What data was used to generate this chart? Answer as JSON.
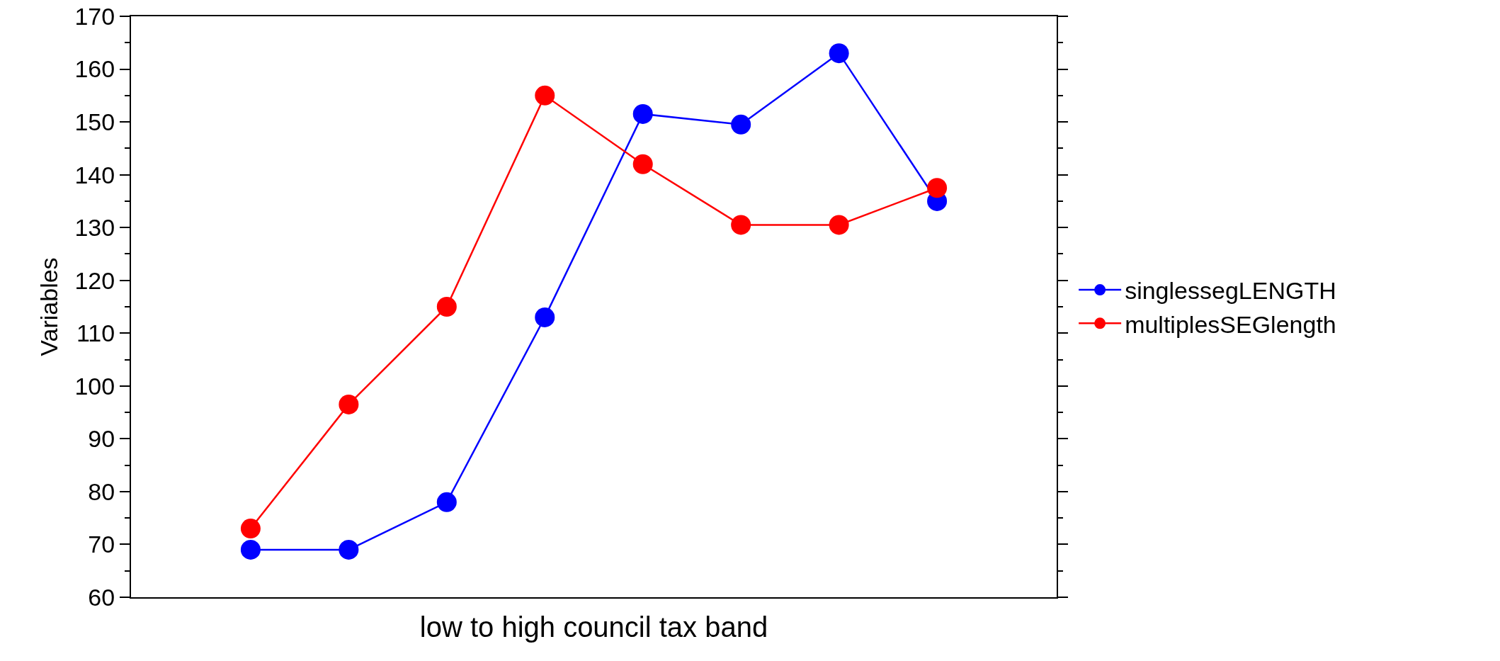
{
  "chart_data": {
    "type": "line",
    "xlabel": "low to high council tax band",
    "ylabel": "Variables",
    "categories": [
      null,
      null,
      null,
      null,
      null,
      null,
      null,
      null
    ],
    "series": [
      {
        "name": "singlessegLENGTH",
        "color": "#0000ff",
        "values": [
          69,
          69,
          78,
          113,
          151.5,
          149.5,
          163,
          135
        ]
      },
      {
        "name": "multiplesSEGlength",
        "color": "#ff0000",
        "values": [
          73,
          96.5,
          115,
          155,
          142,
          130.5,
          130.5,
          137.5
        ]
      }
    ],
    "ylim": [
      60,
      170
    ],
    "yticks": [
      60,
      {
        "value": 65,
        "label": null
      },
      70,
      {
        "value": 75,
        "label": null
      },
      80,
      {
        "value": 85,
        "label": null
      },
      90,
      {
        "value": 95,
        "label": null
      },
      100,
      {
        "value": 105,
        "label": null
      },
      110,
      {
        "value": 115,
        "label": null
      },
      120,
      {
        "value": 125,
        "label": null
      },
      130,
      {
        "value": 135,
        "label": null
      },
      140,
      {
        "value": 145,
        "label": null
      },
      150,
      {
        "value": 155,
        "label": null
      },
      160,
      {
        "value": 165,
        "label": null
      },
      170
    ],
    "grid": false,
    "legend": "right",
    "marker": "circle",
    "line_style": "solid"
  }
}
